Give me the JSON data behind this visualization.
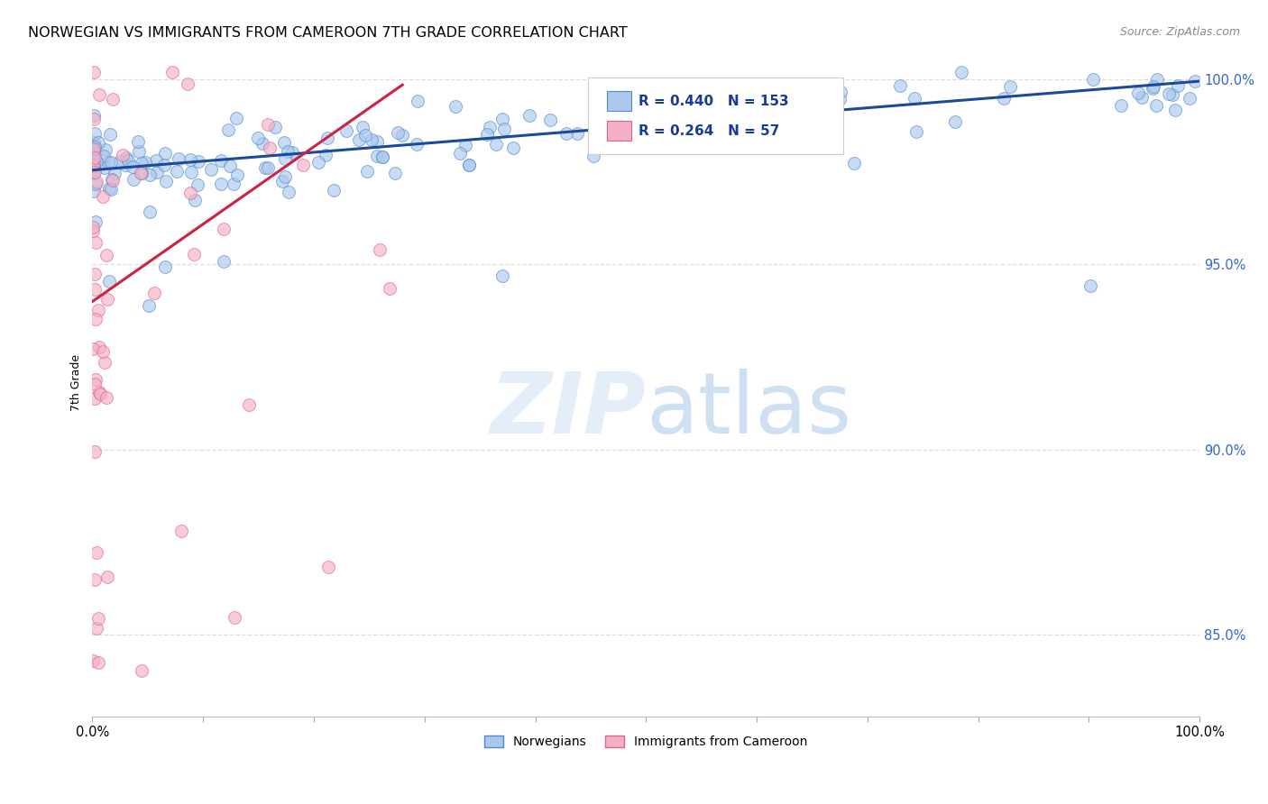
{
  "title": "NORWEGIAN VS IMMIGRANTS FROM CAMEROON 7TH GRADE CORRELATION CHART",
  "source": "Source: ZipAtlas.com",
  "ylabel": "7th Grade",
  "xmin": 0.0,
  "xmax": 1.0,
  "ymin": 0.828,
  "ymax": 1.008,
  "yticks": [
    0.85,
    0.9,
    0.95,
    1.0
  ],
  "ytick_labels": [
    "85.0%",
    "90.0%",
    "95.0%",
    "100.0%"
  ],
  "norwegian_color": "#aac8ee",
  "cameroon_color": "#f5afc5",
  "norwegian_edge": "#5588cc",
  "cameroon_edge": "#dd6688",
  "trendline_norwegian_color": "#1a4a99",
  "trendline_cameroon_color": "#cc2244",
  "R_norwegian": 0.44,
  "N_norwegian": 153,
  "R_cameroon": 0.264,
  "N_cameroon": 57,
  "legend_norwegian": "Norwegians",
  "legend_cameroon": "Immigrants from Cameroon",
  "watermark_zip": "ZIP",
  "watermark_atlas": "atlas",
  "background_color": "#ffffff",
  "grid_color": "#dddddd",
  "title_fontsize": 11.5,
  "source_fontsize": 9,
  "ylabel_fontsize": 9,
  "legend_fontsize": 10,
  "marker_size": 100,
  "trendline_nor_x0": 0.0,
  "trendline_nor_x1": 1.0,
  "trendline_nor_y0": 0.9755,
  "trendline_nor_y1": 0.9995,
  "trendline_cam_x0": 0.0,
  "trendline_cam_x1": 0.28,
  "trendline_cam_y0": 0.94,
  "trendline_cam_y1": 0.9985
}
